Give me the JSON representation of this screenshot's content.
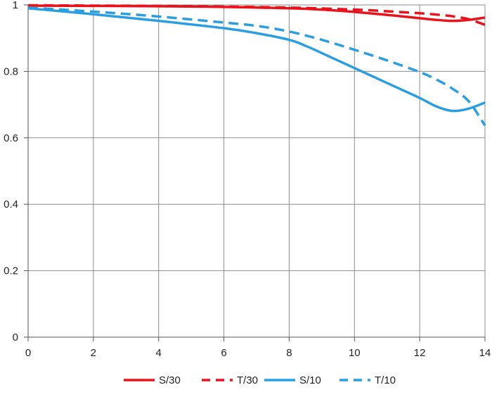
{
  "chart_data": {
    "type": "line",
    "title": "",
    "xlabel": "",
    "ylabel": "",
    "xlim": [
      0,
      14
    ],
    "ylim": [
      0,
      1
    ],
    "x_ticks": [
      "0",
      "2",
      "4",
      "6",
      "8",
      "10",
      "12",
      "14"
    ],
    "y_ticks": [
      "0",
      "0.2",
      "0.4",
      "0.6",
      "0.8",
      "1"
    ],
    "grid": true,
    "legend_position": "bottom",
    "series": [
      {
        "name": "S/30",
        "color": "#e8131b",
        "dash": "solid",
        "x": [
          0,
          2,
          4,
          6,
          8,
          9,
          10,
          11,
          12,
          12.5,
          13,
          13.5,
          14
        ],
        "y": [
          0.998,
          0.997,
          0.996,
          0.994,
          0.99,
          0.986,
          0.979,
          0.97,
          0.96,
          0.955,
          0.952,
          0.955,
          0.962
        ]
      },
      {
        "name": "T/30",
        "color": "#e8131b",
        "dash": "dashed",
        "x": [
          0,
          2,
          4,
          6,
          8,
          10,
          11,
          12,
          12.5,
          13,
          13.5,
          14
        ],
        "y": [
          0.999,
          0.998,
          0.997,
          0.995,
          0.992,
          0.986,
          0.981,
          0.975,
          0.971,
          0.966,
          0.957,
          0.94
        ]
      },
      {
        "name": "S/10",
        "color": "#2a9ee0",
        "dash": "solid",
        "x": [
          0,
          2,
          4,
          6,
          7,
          8,
          8.5,
          9,
          10,
          11,
          12,
          12.5,
          13,
          13.5,
          14
        ],
        "y": [
          0.99,
          0.972,
          0.952,
          0.93,
          0.915,
          0.895,
          0.877,
          0.855,
          0.81,
          0.765,
          0.72,
          0.695,
          0.681,
          0.688,
          0.706
        ]
      },
      {
        "name": "T/10",
        "color": "#2a9ee0",
        "dash": "dashed",
        "x": [
          0,
          2,
          4,
          6,
          7,
          8,
          9,
          10,
          11,
          12,
          12.5,
          13,
          13.5,
          14
        ],
        "y": [
          0.992,
          0.98,
          0.965,
          0.947,
          0.937,
          0.92,
          0.895,
          0.865,
          0.833,
          0.798,
          0.776,
          0.748,
          0.71,
          0.637
        ]
      }
    ]
  }
}
